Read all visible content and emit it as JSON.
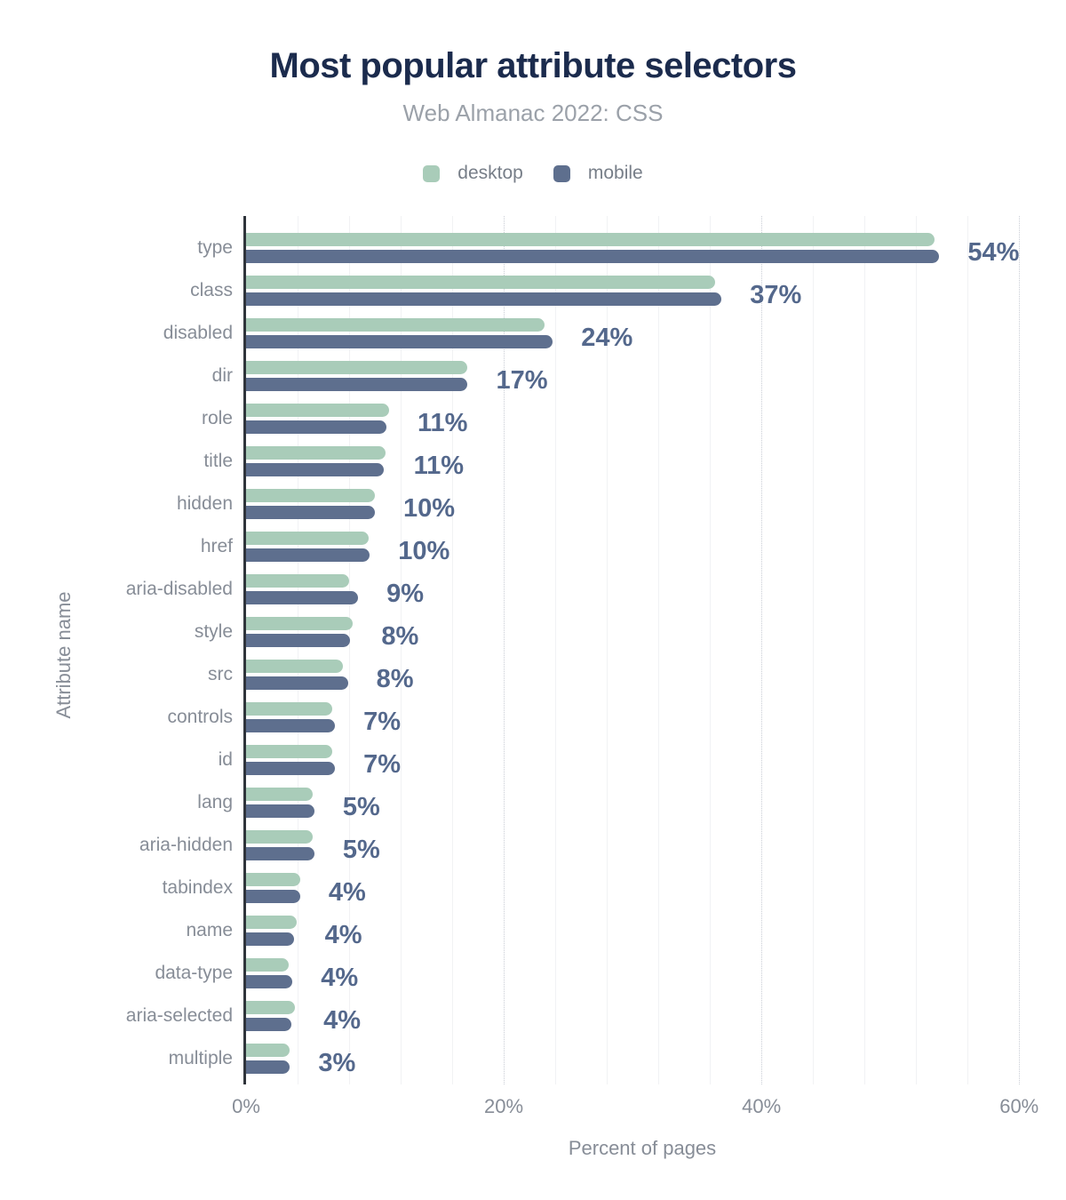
{
  "title": "Most popular attribute selectors",
  "subtitle": "Web Almanac 2022: CSS",
  "legend": {
    "items": [
      {
        "label": "desktop",
        "color": "#a9ccb9"
      },
      {
        "label": "mobile",
        "color": "#5e6f8e"
      }
    ]
  },
  "colors": {
    "background": "#ffffff",
    "title": "#1b2b4d",
    "subtitle": "#9ba1a9",
    "axis_labels": "#878d97",
    "legend_text": "#777e88",
    "value_labels": "#54688c",
    "desktop_bar": "#a9ccb9",
    "mobile_bar": "#5e6f8e",
    "axis_line": "#2f343b",
    "grid_minor": "#f1f2f4",
    "grid_major": "#c9cdd5"
  },
  "chart_data": {
    "type": "bar",
    "orientation": "horizontal",
    "title": "Most popular attribute selectors",
    "subtitle": "Web Almanac 2022: CSS",
    "xlabel": "Percent of pages",
    "ylabel": "Attribute name",
    "xlim": [
      0,
      60
    ],
    "grid": {
      "minor_step": 4,
      "major_step": 20,
      "minor_on": true,
      "major_dotted": true
    },
    "legend_position": "top",
    "categories": [
      "type",
      "class",
      "disabled",
      "dir",
      "role",
      "title",
      "hidden",
      "href",
      "aria-disabled",
      "style",
      "src",
      "controls",
      "id",
      "lang",
      "aria-hidden",
      "tabindex",
      "name",
      "data-type",
      "aria-selected",
      "multiple"
    ],
    "series": [
      {
        "name": "desktop",
        "color": "#a9ccb9",
        "values": [
          53.4,
          36.4,
          23.2,
          17.2,
          11.1,
          10.8,
          10.0,
          9.5,
          8.0,
          8.3,
          7.5,
          6.7,
          6.7,
          5.2,
          5.2,
          4.2,
          3.9,
          3.3,
          3.8,
          3.4
        ]
      },
      {
        "name": "mobile",
        "color": "#5e6f8e",
        "values": [
          53.8,
          36.9,
          23.8,
          17.2,
          10.9,
          10.7,
          10.0,
          9.6,
          8.7,
          8.1,
          7.9,
          6.9,
          6.9,
          5.3,
          5.3,
          4.2,
          3.7,
          3.6,
          3.5,
          3.4
        ]
      }
    ],
    "value_labels": [
      "54%",
      "37%",
      "24%",
      "17%",
      "11%",
      "11%",
      "10%",
      "10%",
      "9%",
      "8%",
      "8%",
      "7%",
      "7%",
      "5%",
      "5%",
      "4%",
      "4%",
      "4%",
      "4%",
      "3%"
    ],
    "x_ticks": [
      {
        "value": 0,
        "label": "0%"
      },
      {
        "value": 20,
        "label": "20%"
      },
      {
        "value": 40,
        "label": "40%"
      },
      {
        "value": 60,
        "label": "60%"
      }
    ]
  }
}
